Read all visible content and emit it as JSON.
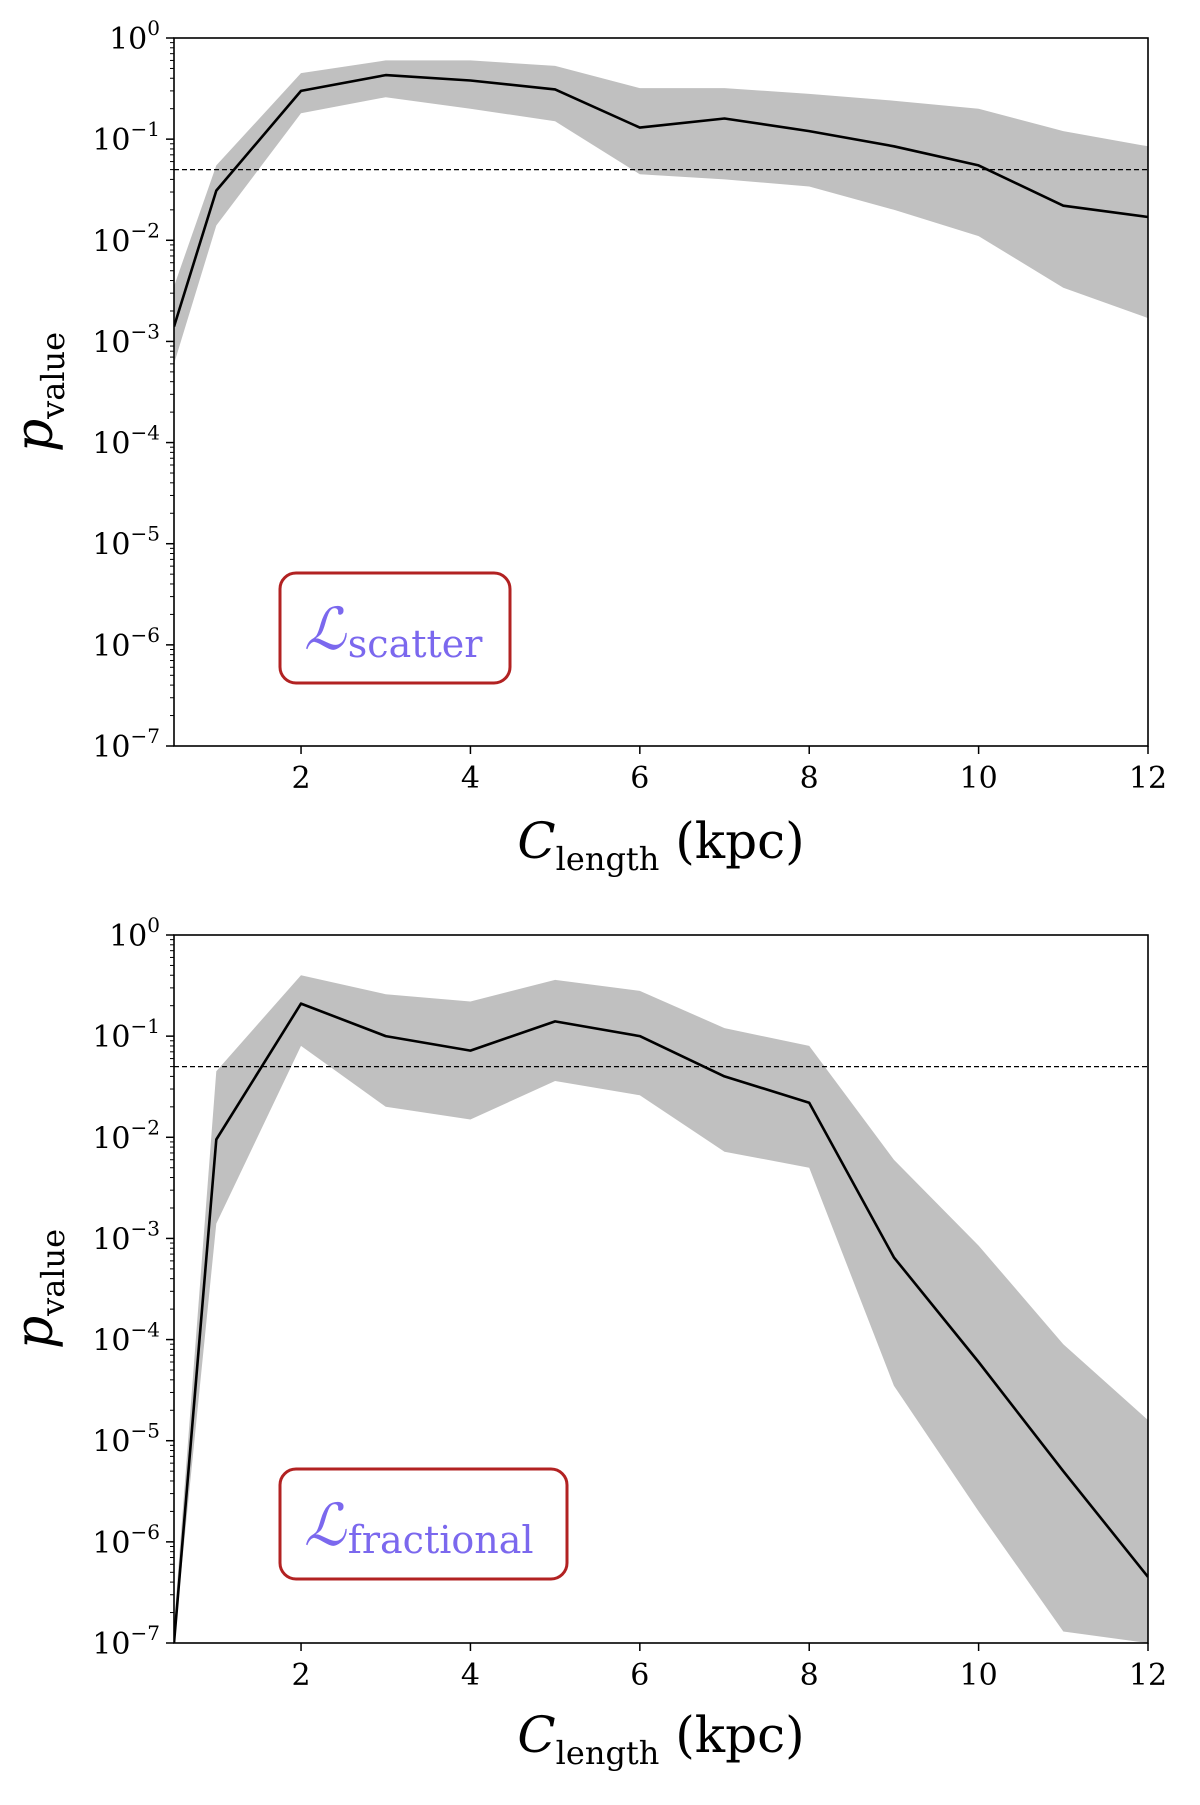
{
  "chart_data": [
    {
      "type": "line",
      "panel": "top",
      "x": [
        0.5,
        1,
        2,
        3,
        4,
        5,
        6,
        7,
        8,
        9,
        10,
        11,
        12
      ],
      "series": [
        {
          "values": [
            0.0014,
            0.031,
            0.3,
            0.43,
            0.38,
            0.31,
            0.13,
            0.16,
            0.12,
            0.085,
            0.055,
            0.022,
            0.017
          ],
          "band_upper": [
            0.0035,
            0.055,
            0.45,
            0.6,
            0.6,
            0.53,
            0.32,
            0.32,
            0.28,
            0.24,
            0.2,
            0.12,
            0.085
          ],
          "band_lower": [
            0.0006,
            0.014,
            0.18,
            0.26,
            0.2,
            0.15,
            0.045,
            0.04,
            0.034,
            0.02,
            0.011,
            0.0034,
            0.0017
          ]
        }
      ],
      "reference_line": 0.05,
      "xlim": [
        0.5,
        12
      ],
      "ylim": [
        1e-07,
        1
      ],
      "yscale": "log",
      "xticks": [
        "2",
        "4",
        "6",
        "8",
        "10",
        "12"
      ],
      "yticks": [
        "0",
        "−1",
        "−2",
        "−3",
        "−4",
        "−5",
        "−6",
        "−7"
      ],
      "xlabel": {
        "main": "C",
        "sub": "length",
        "suffix": " (kpc)"
      },
      "ylabel": {
        "main": "p",
        "sub": "value"
      },
      "legend": {
        "main": "ℒ",
        "sub": "scatter",
        "placement": "lower-left"
      }
    },
    {
      "type": "line",
      "panel": "bottom",
      "x": [
        0.5,
        1,
        2,
        3,
        4,
        5,
        6,
        7,
        8,
        9,
        10,
        11,
        12
      ],
      "series": [
        {
          "values": [
            5e-08,
            0.0095,
            0.21,
            0.1,
            0.072,
            0.14,
            0.1,
            0.04,
            0.022,
            0.00065,
            6e-05,
            5e-06,
            4.5e-07
          ],
          "band_upper": [
            1.5e-07,
            0.045,
            0.4,
            0.26,
            0.22,
            0.36,
            0.28,
            0.12,
            0.08,
            0.006,
            0.00085,
            9e-05,
            1.6e-05
          ],
          "band_lower": [
            5e-08,
            0.0014,
            0.08,
            0.02,
            0.015,
            0.036,
            0.026,
            0.0072,
            0.005,
            3.5e-05,
            2e-06,
            1.3e-07,
            5e-08
          ]
        }
      ],
      "reference_line": 0.05,
      "xlim": [
        0.5,
        12
      ],
      "ylim": [
        1e-07,
        1
      ],
      "yscale": "log",
      "xticks": [
        "2",
        "4",
        "6",
        "8",
        "10",
        "12"
      ],
      "yticks": [
        "0",
        "−1",
        "−2",
        "−3",
        "−4",
        "−5",
        "−6",
        "−7"
      ],
      "xlabel": {
        "main": "C",
        "sub": "length",
        "suffix": " (kpc)"
      },
      "ylabel": {
        "main": "p",
        "sub": "value"
      },
      "legend": {
        "main": "ℒ",
        "sub": "fractional",
        "placement": "lower-left"
      }
    }
  ],
  "colors": {
    "band": "#c0c0c0",
    "line": "#000000",
    "legend_text": "#7b68ee",
    "legend_border": "#b22222"
  }
}
